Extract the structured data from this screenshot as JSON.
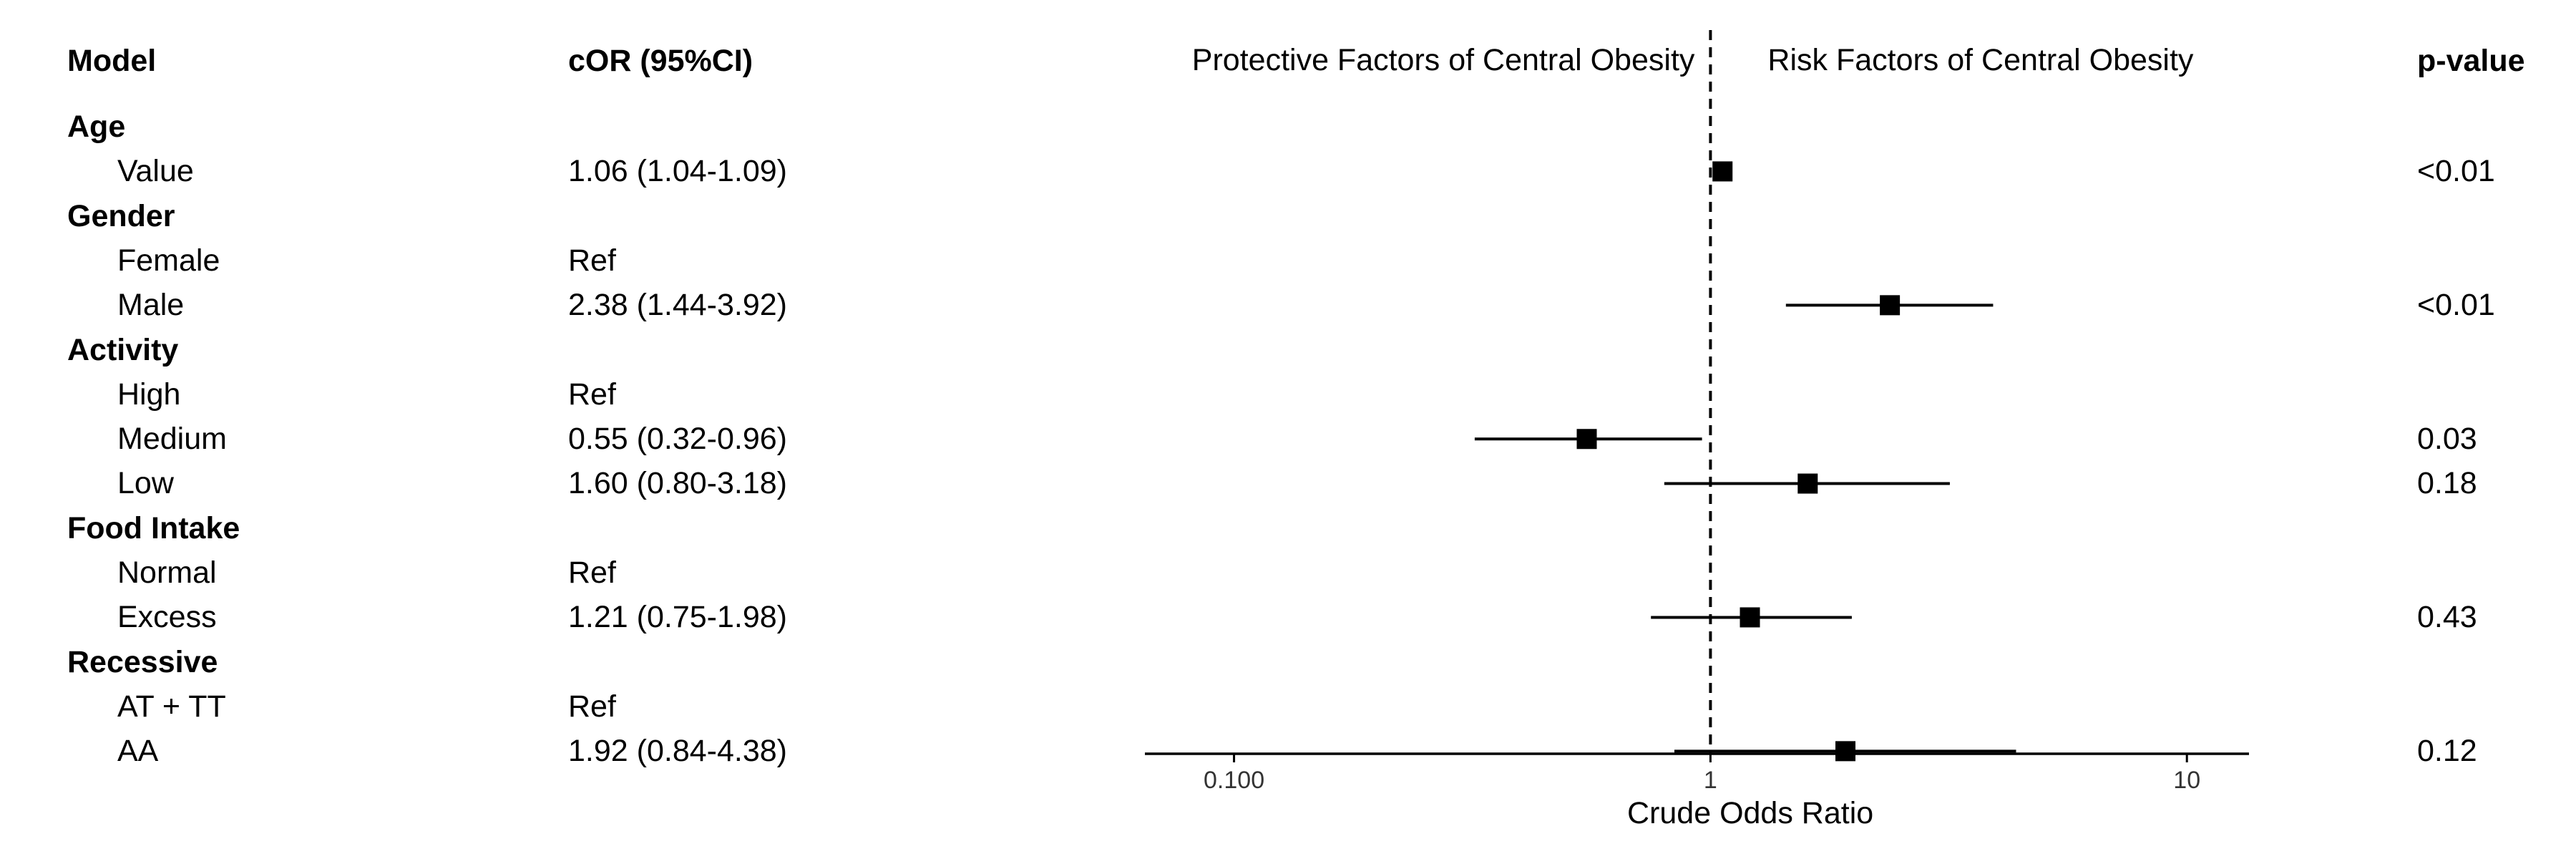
{
  "chart_data": {
    "type": "forest",
    "headers": {
      "model": "Model",
      "estimate": "cOR (95%CI)",
      "pvalue": "p-value",
      "left_region": "Protective Factors of Central Obesity",
      "right_region": "Risk Factors of Central Obesity"
    },
    "xlabel": "Crude Odds Ratio",
    "xscale": "log",
    "xlim": [
      0.065,
      13.5
    ],
    "xticks": [
      0.1,
      1,
      10
    ],
    "xtick_labels": [
      "0.100",
      "1",
      "10"
    ],
    "reference_line": 1,
    "rows": [
      {
        "label": "Age",
        "group": true
      },
      {
        "label": "Value",
        "estimate_text": "1.06 (1.04-1.09)",
        "or": 1.06,
        "lo": 1.04,
        "hi": 1.09,
        "p": "<0.01"
      },
      {
        "label": "Gender",
        "group": true
      },
      {
        "label": "Female",
        "estimate_text": "Ref"
      },
      {
        "label": "Male",
        "estimate_text": "2.38 (1.44-3.92)",
        "or": 2.38,
        "lo": 1.44,
        "hi": 3.92,
        "p": "<0.01"
      },
      {
        "label": "Activity",
        "group": true
      },
      {
        "label": "High",
        "estimate_text": "Ref"
      },
      {
        "label": "Medium",
        "estimate_text": "0.55 (0.32-0.96)",
        "or": 0.55,
        "lo": 0.32,
        "hi": 0.96,
        "p": "0.03"
      },
      {
        "label": "Low",
        "estimate_text": "1.60 (0.80-3.18)",
        "or": 1.6,
        "lo": 0.8,
        "hi": 3.18,
        "p": "0.18"
      },
      {
        "label": "Food Intake",
        "group": true
      },
      {
        "label": "Normal",
        "estimate_text": "Ref"
      },
      {
        "label": "Excess",
        "estimate_text": "1.21 (0.75-1.98)",
        "or": 1.21,
        "lo": 0.75,
        "hi": 1.98,
        "p": "0.43"
      },
      {
        "label": "Recessive",
        "group": true
      },
      {
        "label": "AT + TT",
        "estimate_text": "Ref"
      },
      {
        "label": "AA",
        "estimate_text": "1.92 (0.84-4.38)",
        "or": 1.92,
        "lo": 0.84,
        "hi": 4.38,
        "p": "0.12"
      }
    ]
  }
}
